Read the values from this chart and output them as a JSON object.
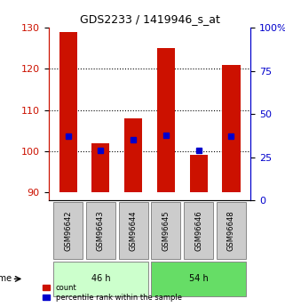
{
  "title": "GDS2233 / 1419946_s_at",
  "samples": [
    "GSM96642",
    "GSM96643",
    "GSM96644",
    "GSM96645",
    "GSM96646",
    "GSM96648"
  ],
  "count_values": [
    129,
    102,
    108,
    125,
    99,
    121
  ],
  "percentile_values": [
    37,
    29,
    35,
    38,
    29,
    37
  ],
  "bar_base": 90,
  "ylim_left": [
    88,
    130
  ],
  "ylim_right": [
    0,
    100
  ],
  "yticks_left": [
    90,
    100,
    110,
    120,
    130
  ],
  "yticks_right": [
    0,
    25,
    50,
    75,
    100
  ],
  "groups": [
    {
      "label": "46 h",
      "samples": [
        "GSM96642",
        "GSM96643",
        "GSM96644"
      ],
      "color": "#ccffcc"
    },
    {
      "label": "54 h",
      "samples": [
        "GSM96645",
        "GSM96646",
        "GSM96648"
      ],
      "color": "#66dd66"
    }
  ],
  "bar_color": "#cc1100",
  "dot_color": "#0000cc",
  "bar_width": 0.55,
  "left_label_color": "#cc1100",
  "right_label_color": "#0000cc",
  "background_color": "#ffffff",
  "plot_bg_color": "#ffffff",
  "legend_count_label": "count",
  "legend_pct_label": "percentile rank within the sample",
  "time_label": "time",
  "grid_color": "#000000",
  "sample_box_color": "#cccccc"
}
